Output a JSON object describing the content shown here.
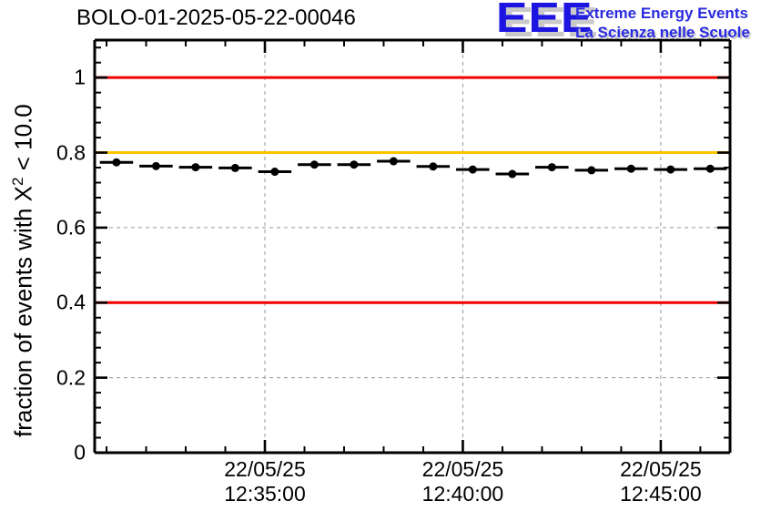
{
  "header": {
    "title": "BOLO-01-2025-05-22-00046",
    "logo": {
      "acronym": "EEE",
      "line1": "Extreme Energy Events",
      "line2": "La Scienza nelle Scuole",
      "acronym_color": "#1c14e0",
      "text_color": "#2a2ae0",
      "shadow_color": "#c9c9c9"
    }
  },
  "chart_data": {
    "type": "line",
    "title": "BOLO-01-2025-05-22-00046",
    "ylabel": "fraction of events with X² < 10.0",
    "ylabel_parts": {
      "prefix": "fraction of events with X",
      "sup": "2",
      "suffix": " < 10.0"
    },
    "xlabel": "",
    "ylim": [
      0,
      1.1
    ],
    "x_unit": "minutes since 22/05/25 12:30:00",
    "xlim_minutes": [
      0.7,
      16.75
    ],
    "grid": true,
    "grid_color": "#999999",
    "y_ticks": [
      {
        "value": 0,
        "label": "0"
      },
      {
        "value": 0.2,
        "label": "0.2"
      },
      {
        "value": 0.4,
        "label": "0.4"
      },
      {
        "value": 0.6,
        "label": "0.6"
      },
      {
        "value": 0.8,
        "label": "0.8"
      },
      {
        "value": 1.0,
        "label": "1"
      }
    ],
    "y_minor_step": 0.04,
    "x_ticks": [
      {
        "minutes": 5,
        "date": "22/05/25",
        "time": "12:35:00"
      },
      {
        "minutes": 10,
        "date": "22/05/25",
        "time": "12:40:00"
      },
      {
        "minutes": 15,
        "date": "22/05/25",
        "time": "12:45:00"
      }
    ],
    "x_minor_step_minutes": 1,
    "reference_lines": [
      {
        "value": 1.0,
        "color": "#ee0000"
      },
      {
        "value": 0.8,
        "color": "#ffc400"
      },
      {
        "value": 0.4,
        "color": "#ee0000"
      }
    ],
    "series": [
      {
        "name": "fraction of events with X² < 10.0",
        "color": "#000000",
        "marker": "filled-circle",
        "x_error_minutes": 0.42,
        "points": [
          {
            "t": "12:31:15",
            "v": 0.774
          },
          {
            "t": "12:32:15",
            "v": 0.764
          },
          {
            "t": "12:33:15",
            "v": 0.761
          },
          {
            "t": "12:34:15",
            "v": 0.759
          },
          {
            "t": "12:35:15",
            "v": 0.749
          },
          {
            "t": "12:36:15",
            "v": 0.768
          },
          {
            "t": "12:37:15",
            "v": 0.768
          },
          {
            "t": "12:38:15",
            "v": 0.777
          },
          {
            "t": "12:39:15",
            "v": 0.763
          },
          {
            "t": "12:40:15",
            "v": 0.755
          },
          {
            "t": "12:41:15",
            "v": 0.743
          },
          {
            "t": "12:42:15",
            "v": 0.761
          },
          {
            "t": "12:43:15",
            "v": 0.753
          },
          {
            "t": "12:44:15",
            "v": 0.757
          },
          {
            "t": "12:45:15",
            "v": 0.755
          },
          {
            "t": "12:46:15",
            "v": 0.757
          }
        ]
      }
    ]
  }
}
